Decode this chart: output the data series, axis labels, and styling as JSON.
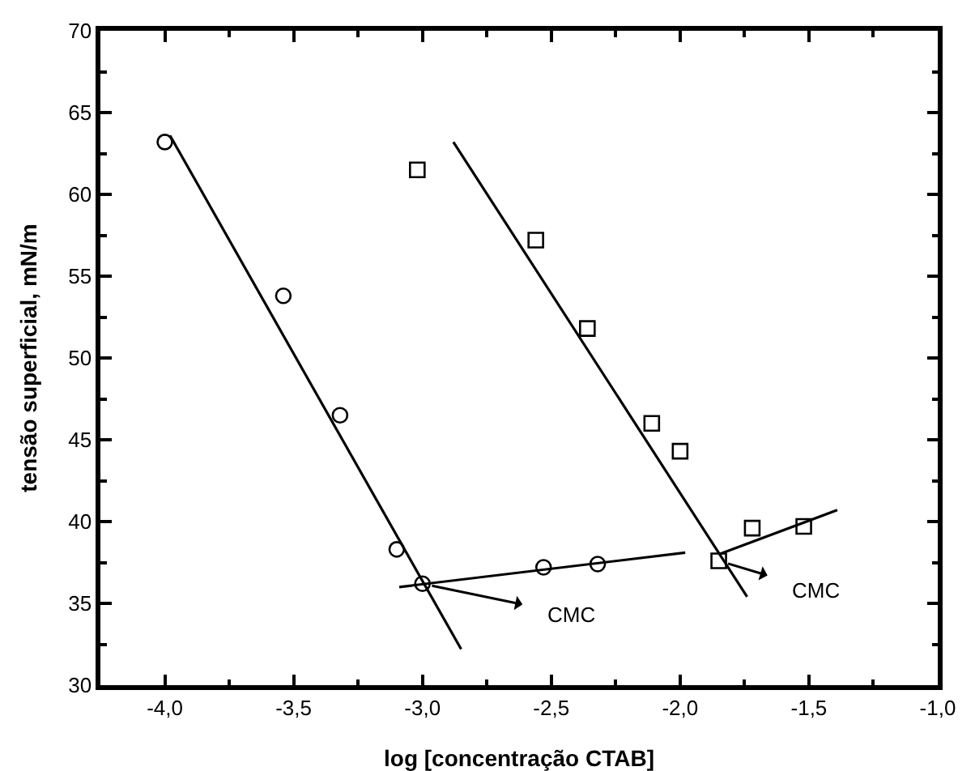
{
  "chart_data": {
    "type": "scatter",
    "xlabel": "log [concentração CTAB]",
    "ylabel": "tensão superficial, mN/m",
    "xlim": [
      -4.25,
      -1.0
    ],
    "xticks": [
      {
        "value": -4.0,
        "label": "-4,0"
      },
      {
        "value": -3.5,
        "label": "-3,5"
      },
      {
        "value": -3.0,
        "label": "-3,0"
      },
      {
        "value": -2.5,
        "label": "-2,5"
      },
      {
        "value": -2.0,
        "label": "-2,0"
      },
      {
        "value": -1.5,
        "label": "-1,5"
      },
      {
        "value": -1.0,
        "label": "-1,0"
      }
    ],
    "ylim": [
      30,
      70
    ],
    "yticks": [
      30,
      35,
      40,
      45,
      50,
      55,
      60,
      65,
      70
    ],
    "grid": false,
    "series": [
      {
        "type": "scatter",
        "marker": "circle",
        "color": "#000000",
        "x": [
          -4.0,
          -3.54,
          -3.32,
          -3.1,
          -3.0,
          -2.53,
          -2.32
        ],
        "values": [
          63.2,
          53.8,
          46.5,
          38.3,
          36.2,
          37.2,
          37.4
        ]
      },
      {
        "type": "scatter",
        "marker": "square",
        "color": "#000000",
        "x": [
          -3.02,
          -2.56,
          -2.36,
          -2.11,
          -2.0,
          -1.85,
          -1.72,
          -1.52
        ],
        "values": [
          61.5,
          57.2,
          51.8,
          46.0,
          44.3,
          37.6,
          39.6,
          39.7
        ]
      },
      {
        "type": "line",
        "marker": "none",
        "line_style": "solid",
        "color": "#000000",
        "x": [
          -3.98,
          -2.85
        ],
        "values": [
          63.6,
          32.2
        ]
      },
      {
        "type": "line",
        "marker": "none",
        "line_style": "solid",
        "color": "#000000",
        "x": [
          -3.09,
          -1.98
        ],
        "values": [
          36.0,
          38.1
        ]
      },
      {
        "type": "line",
        "marker": "none",
        "line_style": "solid",
        "color": "#000000",
        "x": [
          -2.88,
          -1.74
        ],
        "values": [
          63.2,
          35.4
        ]
      },
      {
        "type": "line",
        "marker": "none",
        "line_style": "solid",
        "color": "#000000",
        "x": [
          -1.85,
          -1.39
        ],
        "values": [
          38.0,
          40.7
        ]
      }
    ],
    "annotations": [
      {
        "text": "CMC",
        "x": -3.0,
        "y": 36.2
      },
      {
        "text": "CMC",
        "x": -1.85,
        "y": 37.6
      }
    ]
  }
}
